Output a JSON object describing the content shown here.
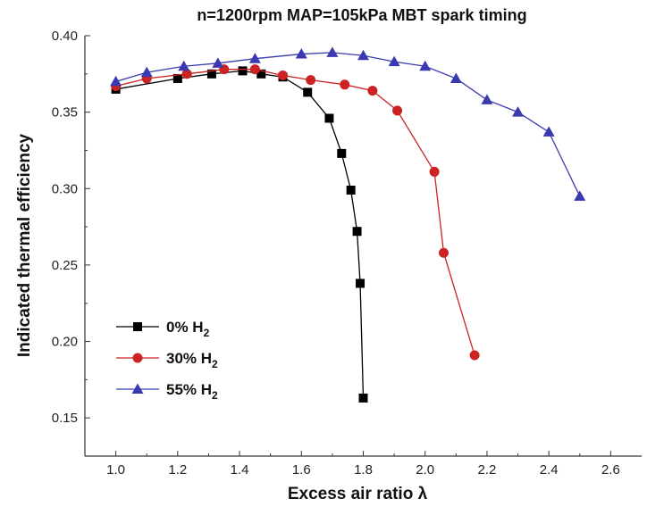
{
  "chart_data": {
    "type": "line",
    "title": "n=1200rpm  MAP=105kPa   MBT spark timing",
    "xlabel": "Excess air ratio λ",
    "ylabel": "Indicated thermal efficiency",
    "xlim": [
      0.9,
      2.7
    ],
    "ylim": [
      0.125,
      0.4
    ],
    "xticks": [
      "1.0",
      "1.2",
      "1.4",
      "1.6",
      "1.8",
      "2.0",
      "2.2",
      "2.4",
      "2.6"
    ],
    "yticks": [
      "0.15",
      "0.20",
      "0.25",
      "0.30",
      "0.35",
      "0.40"
    ],
    "legend_position": "lower-left",
    "grid": false,
    "series": [
      {
        "name": "0%  H",
        "name_sub": "2",
        "marker": "square",
        "color": "#000000",
        "x": [
          1.0,
          1.2,
          1.31,
          1.41,
          1.47,
          1.54,
          1.62,
          1.69,
          1.73,
          1.76,
          1.78,
          1.79,
          1.8
        ],
        "y": [
          0.365,
          0.372,
          0.375,
          0.377,
          0.375,
          0.373,
          0.363,
          0.346,
          0.323,
          0.299,
          0.272,
          0.238,
          0.163
        ]
      },
      {
        "name": "30% H",
        "name_sub": "2",
        "marker": "circle",
        "color": "#cc2222",
        "x": [
          1.0,
          1.1,
          1.23,
          1.35,
          1.45,
          1.54,
          1.63,
          1.74,
          1.83,
          1.91,
          2.03,
          2.06,
          2.16
        ],
        "y": [
          0.367,
          0.372,
          0.375,
          0.378,
          0.378,
          0.374,
          0.371,
          0.368,
          0.364,
          0.351,
          0.311,
          0.258,
          0.191
        ]
      },
      {
        "name": "55% H",
        "name_sub": "2",
        "marker": "triangle",
        "color": "#3a3ab0",
        "x": [
          1.0,
          1.1,
          1.22,
          1.33,
          1.45,
          1.6,
          1.7,
          1.8,
          1.9,
          2.0,
          2.1,
          2.2,
          2.3,
          2.4,
          2.5
        ],
        "y": [
          0.37,
          0.376,
          0.38,
          0.382,
          0.385,
          0.388,
          0.389,
          0.387,
          0.383,
          0.38,
          0.372,
          0.358,
          0.35,
          0.337,
          0.295
        ]
      }
    ]
  }
}
